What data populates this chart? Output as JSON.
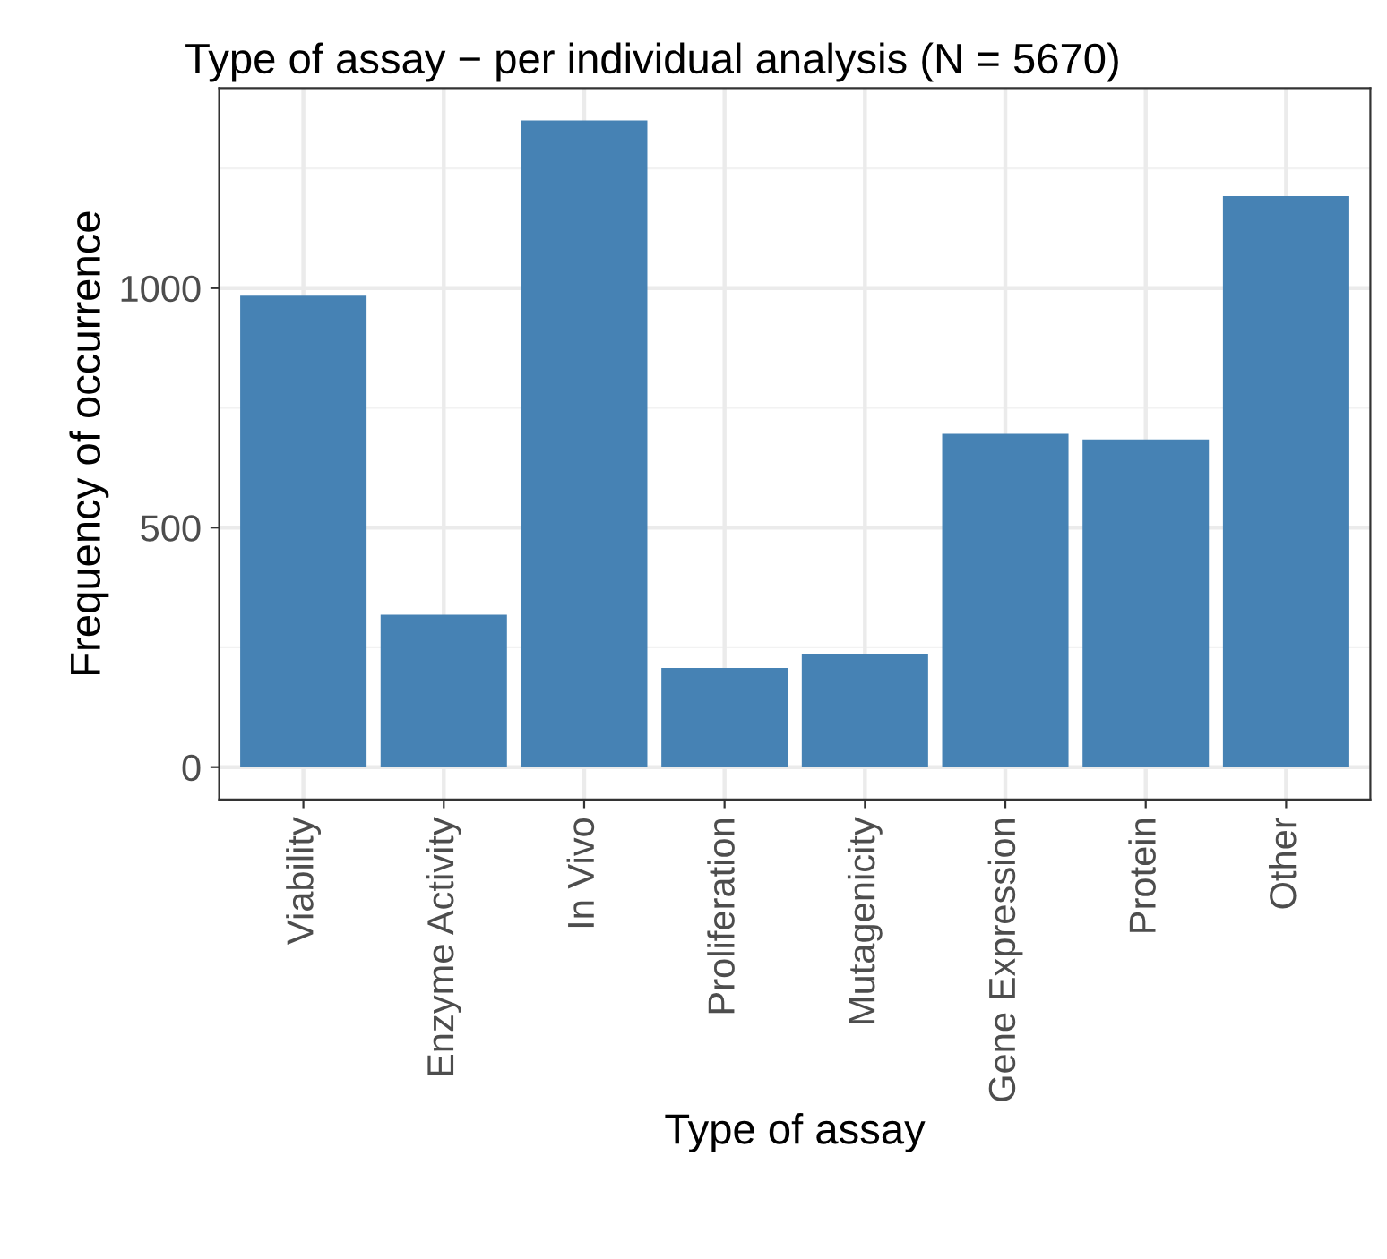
{
  "chart_data": {
    "type": "bar",
    "title": "Type of assay − per individual analysis (N = 5670)",
    "xlabel": "Type of assay",
    "ylabel": "Frequency of occurrence",
    "categories": [
      "Viability",
      "Enzyme Activity",
      "In Vivo",
      "Proliferation",
      "Mutagenicity",
      "Gene Expression",
      "Protein",
      "Other"
    ],
    "values": [
      984,
      318,
      1350,
      207,
      237,
      696,
      684,
      1192
    ],
    "color": "#4682b4",
    "ylim": [
      -67.5,
      1417.5
    ],
    "yticks": [
      0,
      500,
      1000
    ],
    "grid": true
  }
}
